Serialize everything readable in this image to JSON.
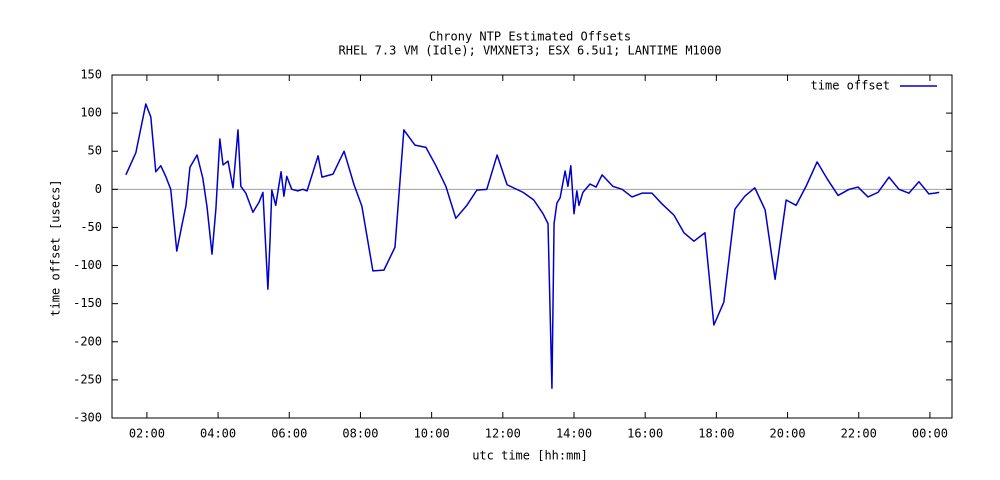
{
  "chart_data": {
    "type": "line",
    "title": "Chrony NTP Estimated Offsets",
    "subtitle": "RHEL 7.3 VM (Idle); VMXNET3; ESX 6.5u1; LANTIME M1000",
    "x_label": "utc time [hh:mm]",
    "y_label": "time offset [usecs]",
    "x": [
      1.41,
      1.69,
      1.97,
      2.11,
      2.25,
      2.39,
      2.53,
      2.67,
      2.84,
      2.98,
      3.1,
      3.21,
      3.41,
      3.57,
      3.69,
      3.83,
      3.94,
      4.05,
      4.14,
      4.28,
      4.42,
      4.56,
      4.64,
      4.78,
      4.98,
      5.15,
      5.26,
      5.4,
      5.46,
      5.51,
      5.62,
      5.77,
      5.85,
      5.93,
      6.07,
      6.24,
      6.38,
      6.5,
      6.81,
      6.92,
      7.23,
      7.54,
      7.82,
      8.04,
      8.35,
      8.66,
      8.97,
      9.22,
      9.53,
      9.84,
      10.12,
      10.4,
      10.68,
      10.99,
      11.27,
      11.55,
      11.84,
      12.12,
      12.57,
      12.87,
      13.13,
      13.27,
      13.38,
      13.44,
      13.52,
      13.61,
      13.75,
      13.83,
      13.91,
      14.0,
      14.08,
      14.14,
      14.25,
      14.45,
      14.62,
      14.79,
      15.09,
      15.35,
      15.63,
      15.91,
      16.19,
      16.47,
      16.81,
      17.09,
      17.37,
      17.68,
      17.93,
      18.21,
      18.52,
      18.8,
      19.08,
      19.37,
      19.65,
      19.96,
      20.24,
      20.52,
      20.83,
      21.11,
      21.42,
      21.73,
      21.98,
      22.26,
      22.54,
      22.85,
      23.13,
      23.41,
      23.69,
      23.97,
      24.14,
      24.26
    ],
    "series": [
      {
        "name": "time offset",
        "color": "#0000cc",
        "values": [
          19,
          48,
          112,
          95,
          23,
          31,
          17,
          0,
          -81,
          -48,
          -21,
          29,
          45,
          15,
          -23,
          -85,
          -25,
          66,
          32,
          37,
          2,
          78,
          4,
          -5,
          -30,
          -17,
          -4,
          -131,
          -67,
          -1,
          -21,
          23,
          -9,
          17,
          0,
          -2,
          0,
          -2,
          44,
          16,
          20,
          50,
          6,
          -22,
          -107,
          -106,
          -76,
          78,
          58,
          55,
          31,
          4,
          -38,
          -21,
          -1,
          0,
          45,
          6,
          -4,
          -14,
          -32,
          -45,
          -261,
          -45,
          -18,
          -11,
          24,
          4,
          31,
          -32,
          -2,
          -21,
          -4,
          7,
          3,
          19,
          4,
          0,
          -10,
          -5,
          -5,
          -19,
          -34,
          -57,
          -68,
          -57,
          -178,
          -148,
          -26,
          -9,
          2,
          -27,
          -118,
          -14,
          -21,
          4,
          36,
          14,
          -8,
          0,
          3,
          -10,
          -4,
          16,
          0,
          -5,
          10,
          -6,
          -5,
          -4
        ]
      }
    ],
    "xlim": [
      1.02,
      24.62
    ],
    "xticks": [
      {
        "value": 2,
        "label": "02:00"
      },
      {
        "value": 4,
        "label": "04:00"
      },
      {
        "value": 6,
        "label": "06:00"
      },
      {
        "value": 8,
        "label": "08:00"
      },
      {
        "value": 10,
        "label": "10:00"
      },
      {
        "value": 12,
        "label": "12:00"
      },
      {
        "value": 14,
        "label": "14:00"
      },
      {
        "value": 16,
        "label": "16:00"
      },
      {
        "value": 18,
        "label": "18:00"
      },
      {
        "value": 20,
        "label": "20:00"
      },
      {
        "value": 22,
        "label": "22:00"
      },
      {
        "value": 24,
        "label": "00:00"
      }
    ],
    "ylim": [
      -300,
      150
    ],
    "yticks": [
      -300,
      -250,
      -200,
      -150,
      -100,
      -50,
      0,
      50,
      100,
      150
    ],
    "grid": false,
    "legend": "top-right"
  }
}
